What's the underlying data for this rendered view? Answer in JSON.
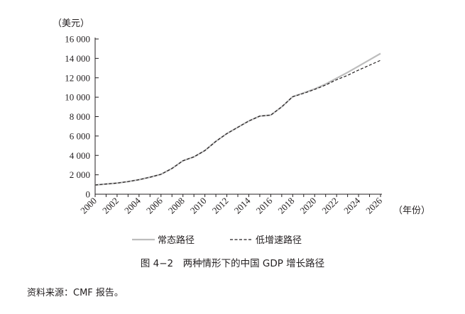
{
  "chart_data": {
    "type": "line",
    "ylabel": "（美元）",
    "xlabel": "（年份）",
    "x": [
      2000,
      2001,
      2002,
      2003,
      2004,
      2005,
      2006,
      2007,
      2008,
      2009,
      2010,
      2011,
      2012,
      2013,
      2014,
      2015,
      2016,
      2017,
      2018,
      2019,
      2020,
      2021,
      2022,
      2023,
      2024,
      2025,
      2026
    ],
    "x_ticks": [
      "2000",
      "2002",
      "2004",
      "2006",
      "2008",
      "2010",
      "2012",
      "2014",
      "2016",
      "2018",
      "2020",
      "2022",
      "2024",
      "2026"
    ],
    "y_ticks": [
      "0",
      "2 000",
      "4 000",
      "6 000",
      "8 000",
      "10 000",
      "12 000",
      "14 000",
      "16 000"
    ],
    "y_tick_values": [
      0,
      2000,
      4000,
      6000,
      8000,
      10000,
      12000,
      14000,
      16000
    ],
    "ylim": [
      0,
      16000
    ],
    "xlim": [
      2000,
      2026
    ],
    "series": [
      {
        "name": "常态路径",
        "style": "solid",
        "color": "#bdbdbd",
        "values": [
          950,
          1050,
          1150,
          1300,
          1500,
          1750,
          2050,
          2650,
          3450,
          3850,
          4500,
          5450,
          6250,
          6900,
          7550,
          8050,
          8150,
          9000,
          10050,
          10450,
          10850,
          11350,
          11950,
          12550,
          13200,
          13850,
          14500
        ]
      },
      {
        "name": "低增速路径",
        "style": "dashed",
        "color": "#231f20",
        "values": [
          950,
          1050,
          1150,
          1300,
          1500,
          1750,
          2050,
          2650,
          3450,
          3850,
          4500,
          5450,
          6250,
          6900,
          7550,
          8050,
          8150,
          9000,
          10050,
          10400,
          10800,
          11250,
          11800,
          12250,
          12800,
          13300,
          13800
        ]
      }
    ],
    "grid": false,
    "legend_position": "bottom-center"
  },
  "caption": "图 4−2　两种情形下的中国 GDP 增长路径",
  "source": "资料来源：CMF 报告。"
}
